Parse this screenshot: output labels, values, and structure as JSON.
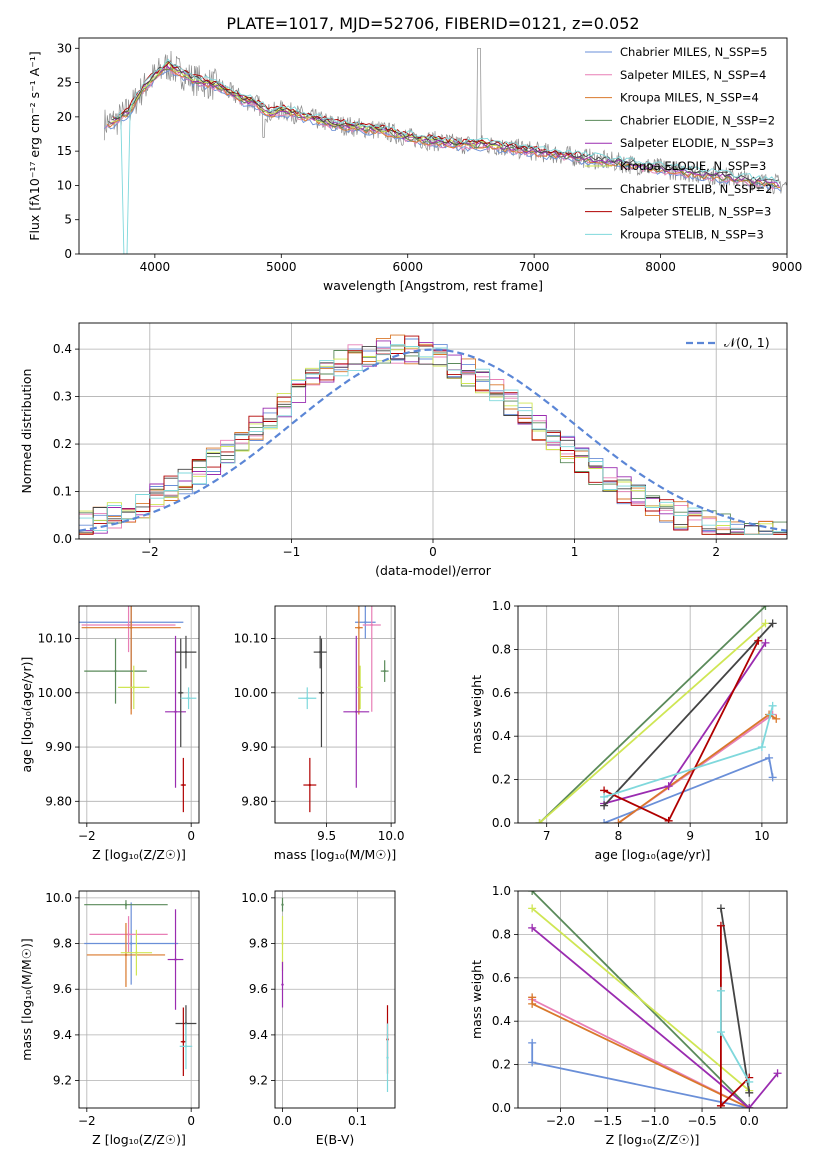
{
  "figure": {
    "title": "PLATE=1017, MJD=52706, FIBERID=0121, z=0.052"
  },
  "colors": {
    "chabrier_miles": "#6a8fd8",
    "salpeter_miles": "#e87fb6",
    "kroupa_miles": "#d9782b",
    "chabrier_elodie": "#5a8a5a",
    "salpeter_elodie": "#9a2cb0",
    "kroupa_elodie": "#cfe654",
    "chabrier_stelib": "#444444",
    "salpeter_stelib": "#b00000",
    "kroupa_stelib": "#7fd8dc",
    "data": "#8c8c8c",
    "normal_curve": "#5b86d6",
    "grid": "#b0b0b0"
  },
  "chart_data": [
    {
      "id": "spectrum",
      "type": "line",
      "xlabel": "wavelength [Angstrom, rest frame]",
      "ylabel": "Flux [fλ10⁻¹⁷ erg cm⁻² s⁻¹ A⁻¹]",
      "xlim": [
        3400,
        9000
      ],
      "ylim": [
        0,
        31.5
      ],
      "xticks": [
        4000,
        5000,
        6000,
        7000,
        8000,
        9000
      ],
      "yticks": [
        0,
        5,
        10,
        15,
        20,
        25,
        30
      ],
      "grid": false,
      "legend_position": "top-right",
      "legend": [
        "Chabrier MILES, N_SSP=5",
        "Salpeter MILES, N_SSP=4",
        "Kroupa MILES, N_SSP=4",
        "Chabrier ELODIE, N_SSP=2",
        "Salpeter ELODIE, N_SSP=3",
        "Kroupa ELODIE, N_SSP=3",
        "Chabrier STELIB, N_SSP=2",
        "Salpeter STELIB, N_SSP=3",
        "Kroupa STELIB, N_SSP=3"
      ],
      "continuum": {
        "x": [
          3600,
          3700,
          3800,
          3900,
          4000,
          4100,
          4200,
          4300,
          4400,
          4500,
          4600,
          4700,
          4800,
          4900,
          5000,
          5200,
          5400,
          5600,
          5800,
          6000,
          6200,
          6400,
          6600,
          6800,
          7000,
          7200,
          7400,
          7600,
          7800,
          8000,
          8200,
          8400,
          8600,
          8800,
          9000
        ],
        "y": [
          19,
          19.5,
          21,
          24,
          26,
          27.5,
          26.5,
          25.5,
          25,
          24.5,
          23.5,
          22.5,
          22,
          20.5,
          21,
          20,
          19,
          18.5,
          18,
          17,
          16.5,
          16,
          16,
          15.5,
          15,
          14.5,
          14,
          13.5,
          13,
          12.5,
          12,
          11.5,
          11,
          10.5,
          10
        ]
      }
    },
    {
      "id": "residuals",
      "type": "line",
      "xlabel": "(data-model)/error",
      "ylabel": "Normed distribution",
      "xlim": [
        -2.5,
        2.5
      ],
      "ylim": [
        0,
        0.455
      ],
      "xticks": [
        -2,
        -1,
        0,
        1,
        2
      ],
      "yticks": [
        0.0,
        0.1,
        0.2,
        0.3,
        0.4
      ],
      "grid": true,
      "legend_position": "top-right",
      "legend": [
        "𝒩(0, 1)"
      ],
      "normal_curve": {
        "mean": 0,
        "sigma": 1
      }
    },
    {
      "id": "age_vs_Z",
      "type": "scatter",
      "xlabel": "Z [log₁₀(Z/Z☉)]",
      "ylabel": "age  [log₁₀(age/yr)]",
      "xlim": [
        -2.15,
        0.15
      ],
      "ylim": [
        9.76,
        10.16
      ],
      "xticks": [
        -2,
        0
      ],
      "yticks": [
        9.8,
        9.9,
        10.0,
        10.1
      ],
      "grid": true,
      "points": [
        {
          "model": "chabrier_miles",
          "x": -1.15,
          "y": 10.13,
          "xerr": 1.0,
          "yerr": 0.16
        },
        {
          "model": "salpeter_miles",
          "x": -1.2,
          "y": 10.125,
          "xerr": 0.9,
          "yerr": 0.05
        },
        {
          "model": "kroupa_miles",
          "x": -1.15,
          "y": 10.12,
          "xerr": 0.95,
          "yerr": 0.16
        },
        {
          "model": "chabrier_elodie",
          "x": -1.45,
          "y": 10.04,
          "xerr": 0.6,
          "yerr": 0.06
        },
        {
          "model": "salpeter_elodie",
          "x": -0.3,
          "y": 9.965,
          "xerr": 0.2,
          "yerr": 0.14
        },
        {
          "model": "kroupa_elodie",
          "x": -1.1,
          "y": 10.01,
          "xerr": 0.3,
          "yerr": 0.04
        },
        {
          "model": "chabrier_stelib",
          "x": -0.1,
          "y": 10.075,
          "xerr": 0.2,
          "yerr": 0.03
        },
        {
          "model": "chabrier_stelib",
          "x": -0.2,
          "y": 10.0,
          "xerr": 0.05,
          "yerr": 0.1
        },
        {
          "model": "salpeter_stelib",
          "x": -0.15,
          "y": 9.83,
          "xerr": 0.05,
          "yerr": 0.05
        },
        {
          "model": "kroupa_stelib",
          "x": -0.05,
          "y": 9.99,
          "xerr": 0.15,
          "yerr": 0.02
        }
      ]
    },
    {
      "id": "age_vs_mass",
      "type": "scatter",
      "xlabel": "mass [log₁₀(M/M☉)]",
      "ylabel": "",
      "xlim": [
        9.1,
        10.03
      ],
      "ylim": [
        9.76,
        10.16
      ],
      "xticks": [
        9.5,
        10.0
      ],
      "yticks": [
        9.8,
        9.9,
        10.0,
        10.1
      ],
      "grid": true,
      "points": [
        {
          "model": "chabrier_miles",
          "x": 9.8,
          "y": 10.13,
          "xerr": 0.08,
          "yerr": 0.03
        },
        {
          "model": "salpeter_miles",
          "x": 9.85,
          "y": 10.125,
          "xerr": 0.07,
          "yerr": 0.16
        },
        {
          "model": "kroupa_miles",
          "x": 9.75,
          "y": 10.12,
          "xerr": 0.03,
          "yerr": 0.16
        },
        {
          "model": "chabrier_elodie",
          "x": 9.95,
          "y": 10.04,
          "xerr": 0.03,
          "yerr": 0.02
        },
        {
          "model": "salpeter_elodie",
          "x": 9.73,
          "y": 9.965,
          "xerr": 0.1,
          "yerr": 0.14
        },
        {
          "model": "kroupa_elodie",
          "x": 9.76,
          "y": 10.01,
          "xerr": 0.02,
          "yerr": 0.04
        },
        {
          "model": "chabrier_stelib",
          "x": 9.45,
          "y": 10.075,
          "xerr": 0.05,
          "yerr": 0.03
        },
        {
          "model": "chabrier_stelib",
          "x": 9.46,
          "y": 10.0,
          "xerr": 0.02,
          "yerr": 0.1
        },
        {
          "model": "salpeter_stelib",
          "x": 9.37,
          "y": 9.83,
          "xerr": 0.05,
          "yerr": 0.05
        },
        {
          "model": "kroupa_stelib",
          "x": 9.35,
          "y": 9.99,
          "xerr": 0.07,
          "yerr": 0.02
        }
      ]
    },
    {
      "id": "massweight_vs_age",
      "type": "line",
      "xlabel": "age  [log₁₀(age/yr)]",
      "ylabel": "mass weight",
      "xlim": [
        6.6,
        10.35
      ],
      "ylim": [
        0,
        1
      ],
      "xticks": [
        7,
        8,
        9,
        10
      ],
      "yticks": [
        0.0,
        0.2,
        0.4,
        0.6,
        0.8,
        1.0
      ],
      "grid": true,
      "series": [
        {
          "model": "chabrier_miles",
          "x": [
            7.8,
            10.1,
            10.15
          ],
          "y": [
            0.0,
            0.3,
            0.21
          ]
        },
        {
          "model": "salpeter_miles",
          "x": [
            8.0,
            10.15
          ],
          "y": [
            0.0,
            0.5
          ]
        },
        {
          "model": "kroupa_miles",
          "x": [
            8.0,
            10.1,
            10.2
          ],
          "y": [
            0.0,
            0.5,
            0.48
          ]
        },
        {
          "model": "chabrier_elodie",
          "x": [
            6.9,
            10.05
          ],
          "y": [
            0.0,
            1.0
          ]
        },
        {
          "model": "salpeter_elodie",
          "x": [
            7.8,
            8.7,
            10.05
          ],
          "y": [
            0.09,
            0.17,
            0.83
          ]
        },
        {
          "model": "kroupa_elodie",
          "x": [
            6.9,
            10.05
          ],
          "y": [
            0.0,
            0.92
          ]
        },
        {
          "model": "chabrier_stelib",
          "x": [
            7.8,
            10.15
          ],
          "y": [
            0.08,
            0.92
          ]
        },
        {
          "model": "salpeter_stelib",
          "x": [
            7.8,
            8.7,
            9.95
          ],
          "y": [
            0.15,
            0.01,
            0.84
          ]
        },
        {
          "model": "kroupa_stelib",
          "x": [
            7.8,
            10.0,
            10.15,
            10.12
          ],
          "y": [
            0.12,
            0.35,
            0.54,
            0.5
          ]
        }
      ]
    },
    {
      "id": "mass_vs_Z",
      "type": "scatter",
      "xlabel": "Z [log₁₀(Z/Z☉)]",
      "ylabel": "mass [log₁₀(M/M☉)]",
      "xlim": [
        -2.15,
        0.15
      ],
      "ylim": [
        9.08,
        10.03
      ],
      "xticks": [
        -2,
        0
      ],
      "yticks": [
        9.2,
        9.4,
        9.6,
        9.8,
        10.0
      ],
      "grid": true,
      "points": [
        {
          "model": "chabrier_miles",
          "x": -1.15,
          "y": 9.8,
          "xerr": 0.9,
          "yerr": 0.18
        },
        {
          "model": "salpeter_miles",
          "x": -1.2,
          "y": 9.84,
          "xerr": 0.75,
          "yerr": 0.08
        },
        {
          "model": "kroupa_miles",
          "x": -1.25,
          "y": 9.75,
          "xerr": 0.75,
          "yerr": 0.14
        },
        {
          "model": "chabrier_elodie",
          "x": -1.25,
          "y": 9.97,
          "xerr": 0.8,
          "yerr": 0.02
        },
        {
          "model": "salpeter_elodie",
          "x": -0.3,
          "y": 9.73,
          "xerr": 0.15,
          "yerr": 0.22
        },
        {
          "model": "kroupa_elodie",
          "x": -1.05,
          "y": 9.76,
          "xerr": 0.3,
          "yerr": 0.1
        },
        {
          "model": "chabrier_stelib",
          "x": -0.1,
          "y": 9.45,
          "xerr": 0.2,
          "yerr": 0.08
        },
        {
          "model": "salpeter_stelib",
          "x": -0.15,
          "y": 9.37,
          "xerr": 0.05,
          "yerr": 0.15
        },
        {
          "model": "kroupa_stelib",
          "x": -0.1,
          "y": 9.35,
          "xerr": 0.12,
          "yerr": 0.1
        }
      ]
    },
    {
      "id": "mass_vs_ebv",
      "type": "scatter",
      "xlabel": "E(B-V)",
      "ylabel": "",
      "xlim": [
        -0.01,
        0.15
      ],
      "ylim": [
        9.08,
        10.03
      ],
      "xticks": [
        0.0,
        0.1
      ],
      "yticks": [
        9.2,
        9.4,
        9.6,
        9.8,
        10.0
      ],
      "grid": true,
      "points": [
        {
          "model": "chabrier_elodie",
          "x": 0.0,
          "y": 9.97,
          "xerr": 0,
          "yerr": 0.03
        },
        {
          "model": "kroupa_elodie",
          "x": 0.0,
          "y": 9.8,
          "xerr": 0,
          "yerr": 0.12
        },
        {
          "model": "salpeter_elodie",
          "x": 0.0,
          "y": 9.62,
          "xerr": 0,
          "yerr": 0.1
        },
        {
          "model": "salpeter_stelib",
          "x": 0.14,
          "y": 9.38,
          "xerr": 0,
          "yerr": 0.15
        },
        {
          "model": "kroupa_stelib",
          "x": 0.14,
          "y": 9.3,
          "xerr": 0,
          "yerr": 0.15
        }
      ]
    },
    {
      "id": "massweight_vs_Z",
      "type": "line",
      "xlabel": "Z [log₁₀(Z/Z☉)]",
      "ylabel": "mass weight",
      "xlim": [
        -2.45,
        0.4
      ],
      "ylim": [
        0,
        1
      ],
      "xticks": [
        -2.0,
        -1.5,
        -1.0,
        -0.5,
        0.0
      ],
      "yticks": [
        0.0,
        0.2,
        0.4,
        0.6,
        0.8,
        1.0
      ],
      "grid": true,
      "series": [
        {
          "model": "chabrier_miles",
          "x": [
            -2.3,
            -2.3,
            0.0
          ],
          "y": [
            0.3,
            0.21,
            0.0
          ]
        },
        {
          "model": "salpeter_miles",
          "x": [
            -2.3,
            0.0
          ],
          "y": [
            0.5,
            0.0
          ]
        },
        {
          "model": "kroupa_miles",
          "x": [
            -2.3,
            -2.3,
            0.0
          ],
          "y": [
            0.51,
            0.48,
            0.0
          ]
        },
        {
          "model": "chabrier_elodie",
          "x": [
            -2.3,
            0.0
          ],
          "y": [
            1.0,
            0.0
          ]
        },
        {
          "model": "salpeter_elodie",
          "x": [
            -2.3,
            0.0,
            0.3
          ],
          "y": [
            0.83,
            0.0,
            0.16
          ]
        },
        {
          "model": "kroupa_elodie",
          "x": [
            -2.3,
            0.0
          ],
          "y": [
            0.92,
            0.08
          ]
        },
        {
          "model": "chabrier_stelib",
          "x": [
            -0.3,
            0.0
          ],
          "y": [
            0.92,
            0.07
          ]
        },
        {
          "model": "salpeter_stelib",
          "x": [
            -0.3,
            -0.3,
            0.0
          ],
          "y": [
            0.84,
            0.01,
            0.14
          ]
        },
        {
          "model": "kroupa_stelib",
          "x": [
            -0.3,
            -0.3,
            0.0
          ],
          "y": [
            0.54,
            0.35,
            0.12
          ]
        }
      ]
    }
  ]
}
